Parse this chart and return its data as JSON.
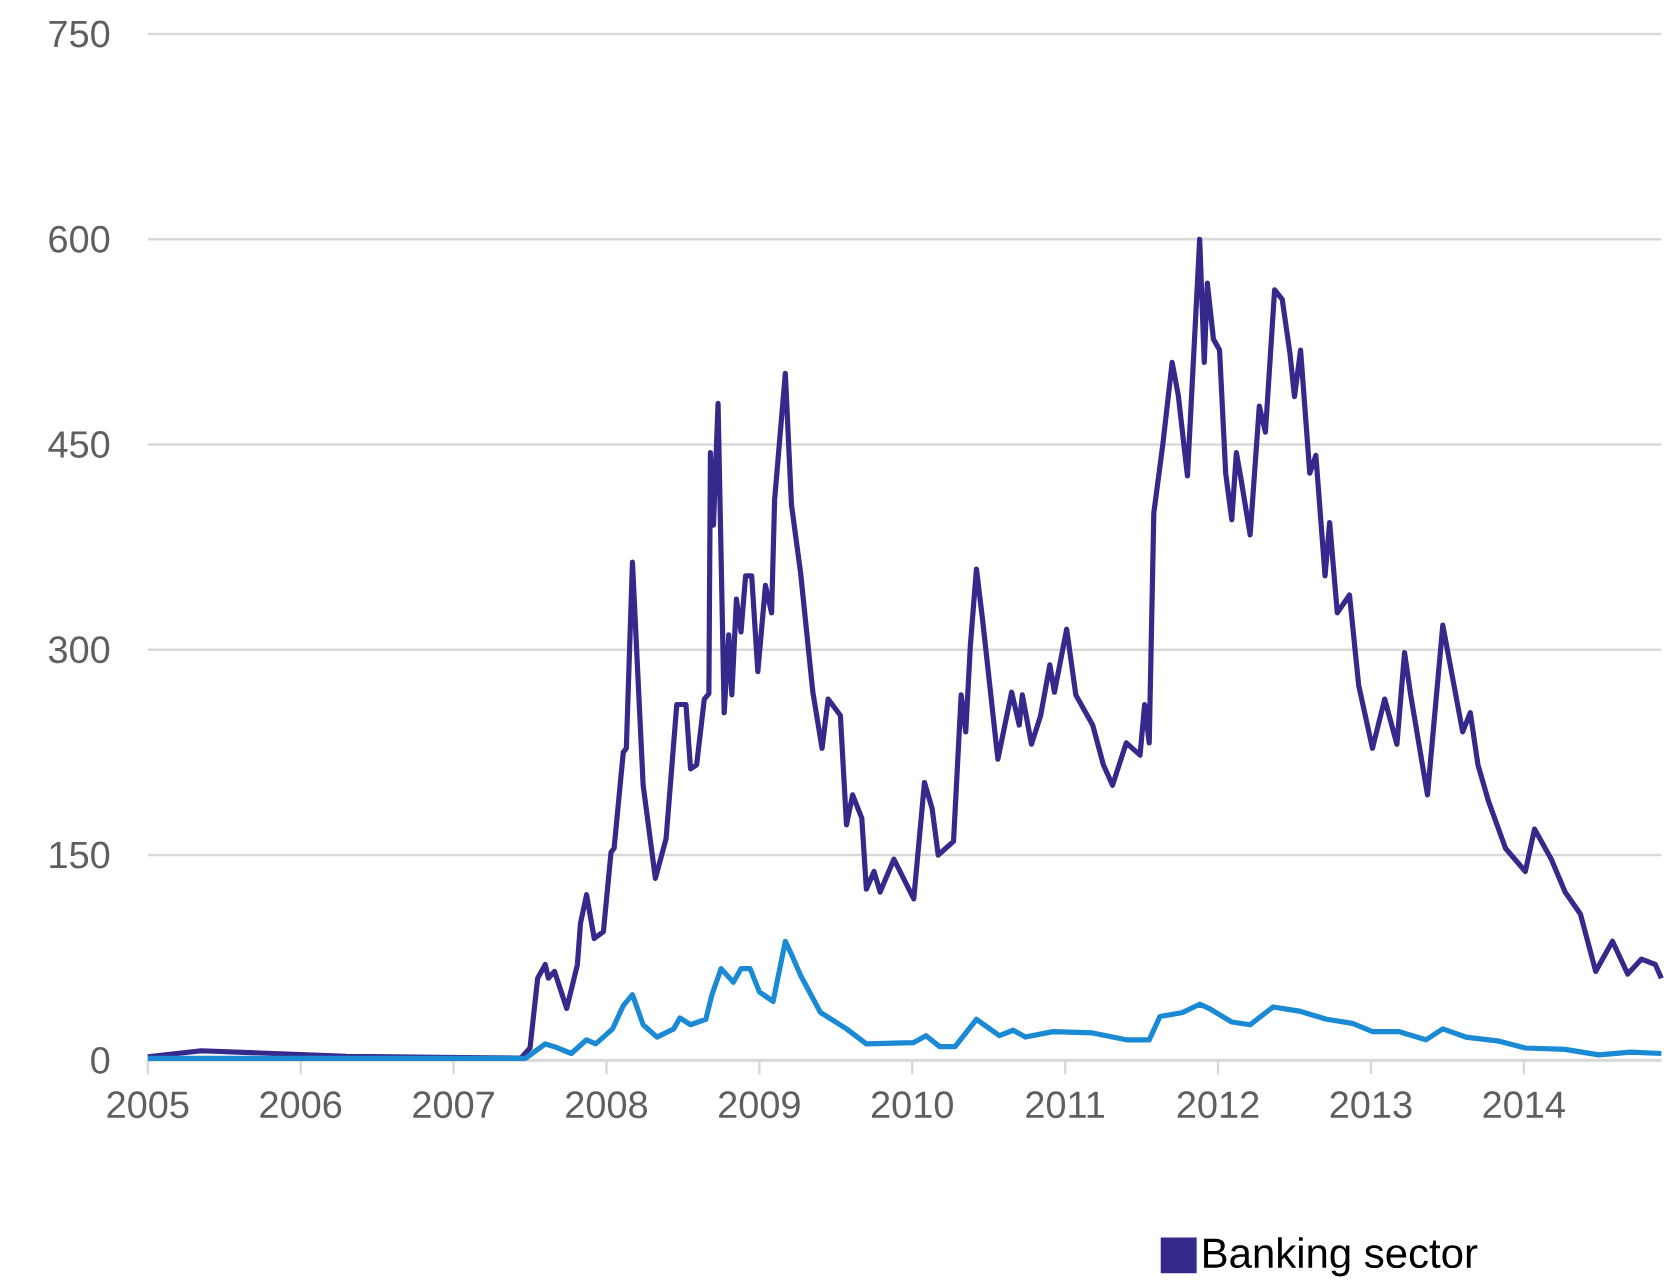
{
  "chart_data": {
    "type": "line",
    "xlim": [
      2005,
      2014.9
    ],
    "ylim": [
      0,
      750
    ],
    "xticks": [
      2005,
      2006,
      2007,
      2008,
      2009,
      2010,
      2011,
      2012,
      2013,
      2014
    ],
    "yticks": [
      0,
      150,
      300,
      450,
      600,
      750
    ],
    "grid": "y",
    "legend": "bottom",
    "marker": "none",
    "line_style": "solid",
    "series": [
      {
        "name": "Banking sector",
        "color": "#35298b",
        "x": [
          2005.0,
          2005.35,
          2006.3,
          2007.44,
          2007.5,
          2007.55,
          2007.6,
          2007.62,
          2007.66,
          2007.74,
          2007.81,
          2007.83,
          2007.87,
          2007.92,
          2007.98,
          2008.03,
          2008.05,
          2008.11,
          2008.13,
          2008.17,
          2008.24,
          2008.32,
          2008.39,
          2008.46,
          2008.52,
          2008.55,
          2008.59,
          2008.64,
          2008.67,
          2008.68,
          2008.7,
          2008.73,
          2008.77,
          2008.8,
          2008.82,
          2008.85,
          2008.88,
          2008.91,
          2008.95,
          2008.99,
          2009.04,
          2009.08,
          2009.1,
          2009.17,
          2009.21,
          2009.27,
          2009.35,
          2009.41,
          2009.45,
          2009.53,
          2009.57,
          2009.61,
          2009.67,
          2009.7,
          2009.75,
          2009.79,
          2009.88,
          2010.01,
          2010.08,
          2010.13,
          2010.17,
          2010.27,
          2010.32,
          2010.35,
          2010.38,
          2010.42,
          2010.46,
          2010.56,
          2010.65,
          2010.7,
          2010.72,
          2010.78,
          2010.84,
          2010.9,
          2010.93,
          2011.01,
          2011.07,
          2011.18,
          2011.25,
          2011.31,
          2011.4,
          2011.49,
          2011.52,
          2011.55,
          2011.58,
          2011.64,
          2011.7,
          2011.74,
          2011.8,
          2011.88,
          2011.91,
          2011.93,
          2011.97,
          2012.01,
          2012.05,
          2012.09,
          2012.12,
          2012.15,
          2012.21,
          2012.27,
          2012.31,
          2012.37,
          2012.42,
          2012.47,
          2012.5,
          2012.54,
          2012.6,
          2012.64,
          2012.7,
          2012.73,
          2012.78,
          2012.86,
          2012.92,
          2013.01,
          2013.09,
          2013.17,
          2013.22,
          2013.26,
          2013.37,
          2013.47,
          2013.6,
          2013.65,
          2013.7,
          2013.77,
          2013.88,
          2014.01,
          2014.07,
          2014.18,
          2014.27,
          2014.37,
          2014.47,
          2014.58,
          2014.68,
          2014.77,
          2014.86,
          2014.9
        ],
        "values": [
          2.5,
          7,
          3,
          1.5,
          9,
          60,
          70,
          60,
          65,
          38,
          70,
          100,
          121,
          89,
          94,
          152,
          155,
          225,
          228,
          364,
          201,
          133,
          162,
          260,
          260,
          213,
          216,
          264,
          268,
          444,
          391,
          480,
          254,
          311,
          267,
          337,
          313,
          354,
          354,
          284,
          347,
          327,
          410,
          502,
          406,
          356,
          269,
          228,
          264,
          252,
          172,
          194,
          177,
          125,
          138,
          123,
          147,
          118,
          203,
          184,
          150,
          160,
          267,
          240,
          303,
          359,
          322,
          220,
          269,
          245,
          267,
          231,
          252,
          289,
          269,
          315,
          267,
          245,
          216,
          201,
          232,
          223,
          260,
          232,
          400,
          451,
          510,
          486,
          427,
          600,
          510,
          568,
          527,
          519,
          429,
          395,
          444,
          425,
          384,
          478,
          459,
          563,
          556,
          517,
          485,
          519,
          429,
          442,
          354,
          393,
          327,
          340,
          274,
          228,
          264,
          231,
          298,
          267,
          194,
          318,
          240,
          254,
          216,
          189,
          155,
          138,
          169,
          147,
          123,
          107,
          65,
          87,
          63,
          74,
          70,
          60
        ]
      },
      {
        "color": "#1a8ad4",
        "x": [
          2005.0,
          2006.3,
          2007.47,
          2007.6,
          2007.66,
          2007.77,
          2007.87,
          2007.93,
          2008.04,
          2008.11,
          2008.17,
          2008.24,
          2008.33,
          2008.44,
          2008.48,
          2008.55,
          2008.65,
          2008.69,
          2008.75,
          2008.83,
          2008.88,
          2008.94,
          2009.0,
          2009.09,
          2009.17,
          2009.22,
          2009.27,
          2009.4,
          2009.57,
          2009.7,
          2010.01,
          2010.09,
          2010.18,
          2010.28,
          2010.42,
          2010.57,
          2010.66,
          2010.74,
          2010.92,
          2011.18,
          2011.4,
          2011.55,
          2011.62,
          2011.77,
          2011.88,
          2011.94,
          2012.09,
          2012.21,
          2012.36,
          2012.53,
          2012.71,
          2012.88,
          2013.01,
          2013.18,
          2013.36,
          2013.47,
          2013.62,
          2013.84,
          2014.01,
          2014.27,
          2014.49,
          2014.7,
          2014.9
        ],
        "values": [
          1.5,
          1.5,
          1.5,
          12,
          10,
          5,
          15,
          12,
          23,
          40,
          48,
          26,
          17,
          23,
          31,
          26,
          30,
          48,
          67,
          57,
          67,
          67,
          50,
          43,
          87,
          75,
          62,
          35,
          23,
          12,
          13,
          18,
          10,
          10,
          30,
          18,
          22,
          17,
          21,
          20,
          15,
          15,
          32,
          35,
          41,
          38,
          28,
          26,
          39,
          36,
          30,
          27,
          21,
          21,
          15,
          23,
          17,
          14,
          9,
          8,
          4,
          6,
          5
        ]
      }
    ]
  }
}
